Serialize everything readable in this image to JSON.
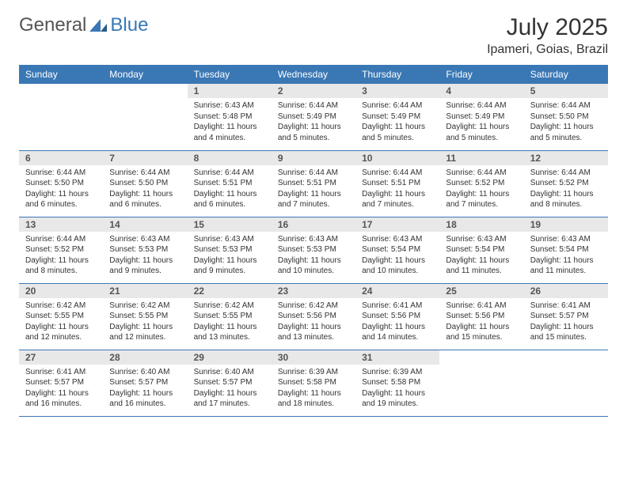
{
  "logo": {
    "general": "General",
    "blue": "Blue"
  },
  "title": "July 2025",
  "location": "Ipameri, Goias, Brazil",
  "colors": {
    "header_bg": "#3a78b5",
    "daynum_bg": "#e8e8e8",
    "border": "#3a78b5",
    "text": "#333333"
  },
  "fonts": {
    "title_size": 30,
    "location_size": 16,
    "header_size": 12,
    "daynum_size": 12,
    "body_size": 10
  },
  "weekdays": [
    "Sunday",
    "Monday",
    "Tuesday",
    "Wednesday",
    "Thursday",
    "Friday",
    "Saturday"
  ],
  "weeks": [
    [
      null,
      null,
      {
        "n": "1",
        "sr": "Sunrise: 6:43 AM",
        "ss": "Sunset: 5:48 PM",
        "dl": "Daylight: 11 hours and 4 minutes."
      },
      {
        "n": "2",
        "sr": "Sunrise: 6:44 AM",
        "ss": "Sunset: 5:49 PM",
        "dl": "Daylight: 11 hours and 5 minutes."
      },
      {
        "n": "3",
        "sr": "Sunrise: 6:44 AM",
        "ss": "Sunset: 5:49 PM",
        "dl": "Daylight: 11 hours and 5 minutes."
      },
      {
        "n": "4",
        "sr": "Sunrise: 6:44 AM",
        "ss": "Sunset: 5:49 PM",
        "dl": "Daylight: 11 hours and 5 minutes."
      },
      {
        "n": "5",
        "sr": "Sunrise: 6:44 AM",
        "ss": "Sunset: 5:50 PM",
        "dl": "Daylight: 11 hours and 5 minutes."
      }
    ],
    [
      {
        "n": "6",
        "sr": "Sunrise: 6:44 AM",
        "ss": "Sunset: 5:50 PM",
        "dl": "Daylight: 11 hours and 6 minutes."
      },
      {
        "n": "7",
        "sr": "Sunrise: 6:44 AM",
        "ss": "Sunset: 5:50 PM",
        "dl": "Daylight: 11 hours and 6 minutes."
      },
      {
        "n": "8",
        "sr": "Sunrise: 6:44 AM",
        "ss": "Sunset: 5:51 PM",
        "dl": "Daylight: 11 hours and 6 minutes."
      },
      {
        "n": "9",
        "sr": "Sunrise: 6:44 AM",
        "ss": "Sunset: 5:51 PM",
        "dl": "Daylight: 11 hours and 7 minutes."
      },
      {
        "n": "10",
        "sr": "Sunrise: 6:44 AM",
        "ss": "Sunset: 5:51 PM",
        "dl": "Daylight: 11 hours and 7 minutes."
      },
      {
        "n": "11",
        "sr": "Sunrise: 6:44 AM",
        "ss": "Sunset: 5:52 PM",
        "dl": "Daylight: 11 hours and 7 minutes."
      },
      {
        "n": "12",
        "sr": "Sunrise: 6:44 AM",
        "ss": "Sunset: 5:52 PM",
        "dl": "Daylight: 11 hours and 8 minutes."
      }
    ],
    [
      {
        "n": "13",
        "sr": "Sunrise: 6:44 AM",
        "ss": "Sunset: 5:52 PM",
        "dl": "Daylight: 11 hours and 8 minutes."
      },
      {
        "n": "14",
        "sr": "Sunrise: 6:43 AM",
        "ss": "Sunset: 5:53 PM",
        "dl": "Daylight: 11 hours and 9 minutes."
      },
      {
        "n": "15",
        "sr": "Sunrise: 6:43 AM",
        "ss": "Sunset: 5:53 PM",
        "dl": "Daylight: 11 hours and 9 minutes."
      },
      {
        "n": "16",
        "sr": "Sunrise: 6:43 AM",
        "ss": "Sunset: 5:53 PM",
        "dl": "Daylight: 11 hours and 10 minutes."
      },
      {
        "n": "17",
        "sr": "Sunrise: 6:43 AM",
        "ss": "Sunset: 5:54 PM",
        "dl": "Daylight: 11 hours and 10 minutes."
      },
      {
        "n": "18",
        "sr": "Sunrise: 6:43 AM",
        "ss": "Sunset: 5:54 PM",
        "dl": "Daylight: 11 hours and 11 minutes."
      },
      {
        "n": "19",
        "sr": "Sunrise: 6:43 AM",
        "ss": "Sunset: 5:54 PM",
        "dl": "Daylight: 11 hours and 11 minutes."
      }
    ],
    [
      {
        "n": "20",
        "sr": "Sunrise: 6:42 AM",
        "ss": "Sunset: 5:55 PM",
        "dl": "Daylight: 11 hours and 12 minutes."
      },
      {
        "n": "21",
        "sr": "Sunrise: 6:42 AM",
        "ss": "Sunset: 5:55 PM",
        "dl": "Daylight: 11 hours and 12 minutes."
      },
      {
        "n": "22",
        "sr": "Sunrise: 6:42 AM",
        "ss": "Sunset: 5:55 PM",
        "dl": "Daylight: 11 hours and 13 minutes."
      },
      {
        "n": "23",
        "sr": "Sunrise: 6:42 AM",
        "ss": "Sunset: 5:56 PM",
        "dl": "Daylight: 11 hours and 13 minutes."
      },
      {
        "n": "24",
        "sr": "Sunrise: 6:41 AM",
        "ss": "Sunset: 5:56 PM",
        "dl": "Daylight: 11 hours and 14 minutes."
      },
      {
        "n": "25",
        "sr": "Sunrise: 6:41 AM",
        "ss": "Sunset: 5:56 PM",
        "dl": "Daylight: 11 hours and 15 minutes."
      },
      {
        "n": "26",
        "sr": "Sunrise: 6:41 AM",
        "ss": "Sunset: 5:57 PM",
        "dl": "Daylight: 11 hours and 15 minutes."
      }
    ],
    [
      {
        "n": "27",
        "sr": "Sunrise: 6:41 AM",
        "ss": "Sunset: 5:57 PM",
        "dl": "Daylight: 11 hours and 16 minutes."
      },
      {
        "n": "28",
        "sr": "Sunrise: 6:40 AM",
        "ss": "Sunset: 5:57 PM",
        "dl": "Daylight: 11 hours and 16 minutes."
      },
      {
        "n": "29",
        "sr": "Sunrise: 6:40 AM",
        "ss": "Sunset: 5:57 PM",
        "dl": "Daylight: 11 hours and 17 minutes."
      },
      {
        "n": "30",
        "sr": "Sunrise: 6:39 AM",
        "ss": "Sunset: 5:58 PM",
        "dl": "Daylight: 11 hours and 18 minutes."
      },
      {
        "n": "31",
        "sr": "Sunrise: 6:39 AM",
        "ss": "Sunset: 5:58 PM",
        "dl": "Daylight: 11 hours and 19 minutes."
      },
      null,
      null
    ]
  ]
}
